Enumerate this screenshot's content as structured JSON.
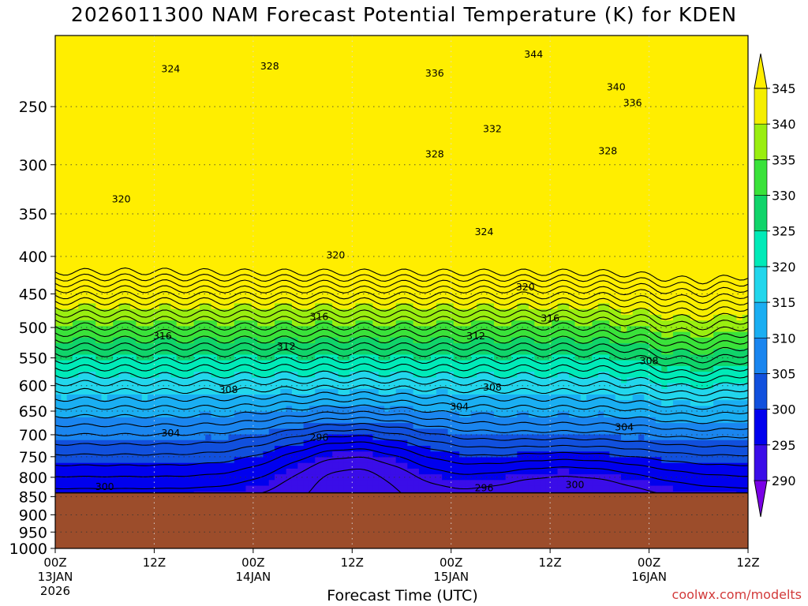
{
  "chart_data": {
    "type": "contour",
    "title": "2026011300 NAM Forecast Potential Temperature (K) for KDEN",
    "xlabel": "Forecast Time (UTC)",
    "ylabel": "",
    "credit": "coolwx.com/modelts",
    "y_axis": {
      "scale": "log-pressure",
      "range": [
        1000,
        200
      ],
      "ticks": [
        250,
        300,
        350,
        400,
        450,
        500,
        550,
        600,
        650,
        700,
        750,
        800,
        850,
        900,
        950,
        1000
      ]
    },
    "x_axis": {
      "range_hours": [
        0,
        84
      ],
      "ticks": [
        {
          "hour": 0,
          "label": "00Z",
          "sub": "13JAN",
          "sub2": "2026"
        },
        {
          "hour": 12,
          "label": "12Z",
          "sub": "",
          "sub2": ""
        },
        {
          "hour": 24,
          "label": "00Z",
          "sub": "14JAN",
          "sub2": ""
        },
        {
          "hour": 36,
          "label": "12Z",
          "sub": "",
          "sub2": ""
        },
        {
          "hour": 48,
          "label": "00Z",
          "sub": "15JAN",
          "sub2": ""
        },
        {
          "hour": 60,
          "label": "12Z",
          "sub": "",
          "sub2": ""
        },
        {
          "hour": 72,
          "label": "00Z",
          "sub": "16JAN",
          "sub2": ""
        },
        {
          "hour": 84,
          "label": "12Z",
          "sub": "",
          "sub2": ""
        }
      ]
    },
    "surface_pressure_hpa": 840,
    "ground_color": "#9c4d2b",
    "grid": true,
    "colorbar": {
      "levels": [
        290,
        295,
        300,
        305,
        310,
        315,
        320,
        325,
        330,
        335,
        340,
        345
      ],
      "colors": [
        "#7a00e6",
        "#3a0de8",
        "#0000ee",
        "#1150dd",
        "#1a85ef",
        "#1aaef2",
        "#22d6ec",
        "#00eab8",
        "#10d46a",
        "#3ae23a",
        "#9aee10",
        "#f5ee00",
        "#ffee00"
      ],
      "labels": [
        "290",
        "295",
        "300",
        "305",
        "310",
        "315",
        "320",
        "325",
        "330",
        "335",
        "340",
        "345"
      ]
    },
    "contour_labels": [
      {
        "text": "324",
        "hour": 14,
        "p": 222
      },
      {
        "text": "328",
        "hour": 26,
        "p": 220
      },
      {
        "text": "336",
        "hour": 46,
        "p": 225
      },
      {
        "text": "344",
        "hour": 58,
        "p": 212
      },
      {
        "text": "340",
        "hour": 68,
        "p": 235
      },
      {
        "text": "336",
        "hour": 70,
        "p": 247
      },
      {
        "text": "332",
        "hour": 53,
        "p": 268
      },
      {
        "text": "328",
        "hour": 46,
        "p": 290
      },
      {
        "text": "328",
        "hour": 67,
        "p": 287
      },
      {
        "text": "320",
        "hour": 8,
        "p": 334
      },
      {
        "text": "324",
        "hour": 52,
        "p": 370
      },
      {
        "text": "320",
        "hour": 34,
        "p": 398
      },
      {
        "text": "320",
        "hour": 57,
        "p": 440
      },
      {
        "text": "316",
        "hour": 32,
        "p": 483
      },
      {
        "text": "316",
        "hour": 60,
        "p": 485
      },
      {
        "text": "316",
        "hour": 13,
        "p": 513
      },
      {
        "text": "312",
        "hour": 28,
        "p": 530
      },
      {
        "text": "312",
        "hour": 51,
        "p": 513
      },
      {
        "text": "308",
        "hour": 72,
        "p": 555
      },
      {
        "text": "308",
        "hour": 21,
        "p": 607
      },
      {
        "text": "308",
        "hour": 53,
        "p": 603
      },
      {
        "text": "304",
        "hour": 49,
        "p": 640
      },
      {
        "text": "304",
        "hour": 14,
        "p": 696
      },
      {
        "text": "304",
        "hour": 69,
        "p": 683
      },
      {
        "text": "296",
        "hour": 32,
        "p": 705
      },
      {
        "text": "300",
        "hour": 6,
        "p": 823
      },
      {
        "text": "296",
        "hour": 52,
        "p": 826
      },
      {
        "text": "300",
        "hour": 63,
        "p": 818
      }
    ]
  }
}
